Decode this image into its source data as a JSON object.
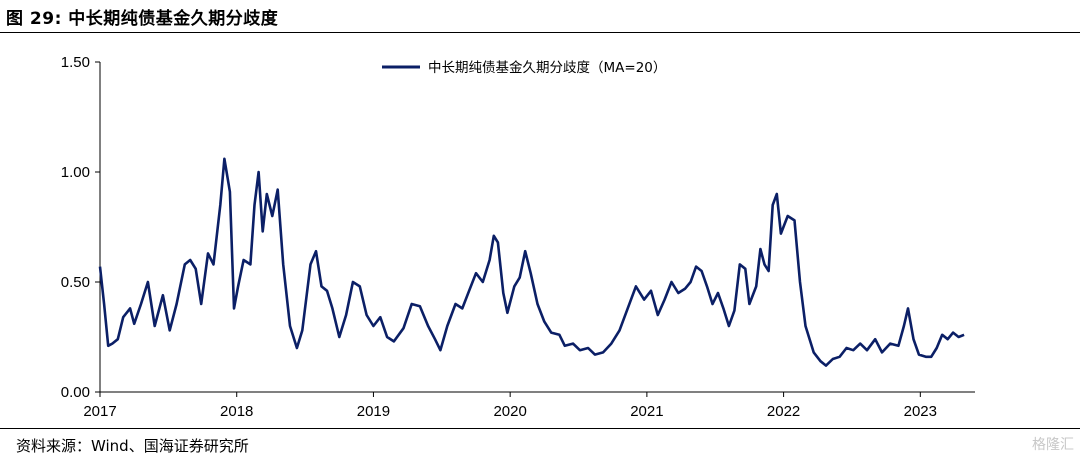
{
  "figure": {
    "title": "图 29:  中长期纯债基金久期分歧度",
    "source": "资料来源：Wind、国海证券研究所",
    "watermark": "格隆汇"
  },
  "chart_data": {
    "type": "line",
    "title": "",
    "xlabel": "",
    "ylabel": "",
    "ylim": [
      0,
      1.5
    ],
    "yticks": [
      0.0,
      0.5,
      1.0,
      1.5
    ],
    "ytick_labels": [
      "0.00",
      "0.50",
      "1.00",
      "1.50"
    ],
    "xlim": [
      2017.0,
      2023.4
    ],
    "xticks": [
      2017,
      2018,
      2019,
      2020,
      2021,
      2022,
      2023
    ],
    "xtick_labels": [
      "2017",
      "2018",
      "2019",
      "2020",
      "2021",
      "2022",
      "2023"
    ],
    "grid": false,
    "legend_position": "top-center",
    "line_color": "#0b1f66",
    "series": [
      {
        "name": "中长期纯债基金久期分歧度（MA=20）",
        "points": [
          [
            2017.0,
            0.57
          ],
          [
            2017.03,
            0.4
          ],
          [
            2017.06,
            0.21
          ],
          [
            2017.09,
            0.22
          ],
          [
            2017.13,
            0.24
          ],
          [
            2017.17,
            0.34
          ],
          [
            2017.22,
            0.38
          ],
          [
            2017.25,
            0.31
          ],
          [
            2017.3,
            0.4
          ],
          [
            2017.35,
            0.5
          ],
          [
            2017.4,
            0.3
          ],
          [
            2017.46,
            0.44
          ],
          [
            2017.51,
            0.28
          ],
          [
            2017.56,
            0.4
          ],
          [
            2017.62,
            0.58
          ],
          [
            2017.66,
            0.6
          ],
          [
            2017.7,
            0.56
          ],
          [
            2017.74,
            0.4
          ],
          [
            2017.79,
            0.63
          ],
          [
            2017.83,
            0.58
          ],
          [
            2017.88,
            0.85
          ],
          [
            2017.91,
            1.06
          ],
          [
            2017.95,
            0.91
          ],
          [
            2017.98,
            0.38
          ],
          [
            2018.01,
            0.48
          ],
          [
            2018.05,
            0.6
          ],
          [
            2018.1,
            0.58
          ],
          [
            2018.13,
            0.85
          ],
          [
            2018.16,
            1.0
          ],
          [
            2018.19,
            0.73
          ],
          [
            2018.22,
            0.9
          ],
          [
            2018.26,
            0.8
          ],
          [
            2018.3,
            0.92
          ],
          [
            2018.34,
            0.58
          ],
          [
            2018.39,
            0.3
          ],
          [
            2018.44,
            0.2
          ],
          [
            2018.48,
            0.28
          ],
          [
            2018.54,
            0.58
          ],
          [
            2018.58,
            0.64
          ],
          [
            2018.62,
            0.48
          ],
          [
            2018.66,
            0.46
          ],
          [
            2018.7,
            0.38
          ],
          [
            2018.75,
            0.25
          ],
          [
            2018.8,
            0.35
          ],
          [
            2018.85,
            0.5
          ],
          [
            2018.9,
            0.48
          ],
          [
            2018.95,
            0.35
          ],
          [
            2019.0,
            0.3
          ],
          [
            2019.05,
            0.34
          ],
          [
            2019.1,
            0.25
          ],
          [
            2019.15,
            0.23
          ],
          [
            2019.22,
            0.29
          ],
          [
            2019.28,
            0.4
          ],
          [
            2019.34,
            0.39
          ],
          [
            2019.4,
            0.3
          ],
          [
            2019.45,
            0.24
          ],
          [
            2019.49,
            0.19
          ],
          [
            2019.54,
            0.3
          ],
          [
            2019.6,
            0.4
          ],
          [
            2019.65,
            0.38
          ],
          [
            2019.7,
            0.46
          ],
          [
            2019.75,
            0.54
          ],
          [
            2019.8,
            0.5
          ],
          [
            2019.85,
            0.6
          ],
          [
            2019.88,
            0.71
          ],
          [
            2019.91,
            0.68
          ],
          [
            2019.95,
            0.45
          ],
          [
            2019.98,
            0.36
          ],
          [
            2020.03,
            0.48
          ],
          [
            2020.07,
            0.52
          ],
          [
            2020.11,
            0.64
          ],
          [
            2020.15,
            0.54
          ],
          [
            2020.2,
            0.4
          ],
          [
            2020.25,
            0.32
          ],
          [
            2020.3,
            0.27
          ],
          [
            2020.36,
            0.26
          ],
          [
            2020.4,
            0.21
          ],
          [
            2020.46,
            0.22
          ],
          [
            2020.51,
            0.19
          ],
          [
            2020.57,
            0.2
          ],
          [
            2020.62,
            0.17
          ],
          [
            2020.68,
            0.18
          ],
          [
            2020.74,
            0.22
          ],
          [
            2020.8,
            0.28
          ],
          [
            2020.86,
            0.38
          ],
          [
            2020.92,
            0.48
          ],
          [
            2020.98,
            0.42
          ],
          [
            2021.03,
            0.46
          ],
          [
            2021.08,
            0.35
          ],
          [
            2021.13,
            0.42
          ],
          [
            2021.18,
            0.5
          ],
          [
            2021.23,
            0.45
          ],
          [
            2021.28,
            0.47
          ],
          [
            2021.32,
            0.5
          ],
          [
            2021.36,
            0.57
          ],
          [
            2021.4,
            0.55
          ],
          [
            2021.44,
            0.48
          ],
          [
            2021.48,
            0.4
          ],
          [
            2021.52,
            0.45
          ],
          [
            2021.56,
            0.38
          ],
          [
            2021.6,
            0.3
          ],
          [
            2021.64,
            0.37
          ],
          [
            2021.68,
            0.58
          ],
          [
            2021.72,
            0.56
          ],
          [
            2021.75,
            0.4
          ],
          [
            2021.8,
            0.48
          ],
          [
            2021.83,
            0.65
          ],
          [
            2021.86,
            0.58
          ],
          [
            2021.89,
            0.55
          ],
          [
            2021.92,
            0.85
          ],
          [
            2021.95,
            0.9
          ],
          [
            2021.98,
            0.72
          ],
          [
            2022.03,
            0.8
          ],
          [
            2022.08,
            0.78
          ],
          [
            2022.12,
            0.5
          ],
          [
            2022.16,
            0.3
          ],
          [
            2022.22,
            0.18
          ],
          [
            2022.27,
            0.14
          ],
          [
            2022.31,
            0.12
          ],
          [
            2022.36,
            0.15
          ],
          [
            2022.41,
            0.16
          ],
          [
            2022.46,
            0.2
          ],
          [
            2022.51,
            0.19
          ],
          [
            2022.56,
            0.22
          ],
          [
            2022.61,
            0.19
          ],
          [
            2022.67,
            0.24
          ],
          [
            2022.72,
            0.18
          ],
          [
            2022.78,
            0.22
          ],
          [
            2022.84,
            0.21
          ],
          [
            2022.88,
            0.3
          ],
          [
            2022.91,
            0.38
          ],
          [
            2022.95,
            0.24
          ],
          [
            2022.99,
            0.17
          ],
          [
            2023.04,
            0.16
          ],
          [
            2023.08,
            0.16
          ],
          [
            2023.12,
            0.2
          ],
          [
            2023.16,
            0.26
          ],
          [
            2023.2,
            0.24
          ],
          [
            2023.24,
            0.27
          ],
          [
            2023.28,
            0.25
          ],
          [
            2023.32,
            0.26
          ]
        ]
      }
    ]
  }
}
